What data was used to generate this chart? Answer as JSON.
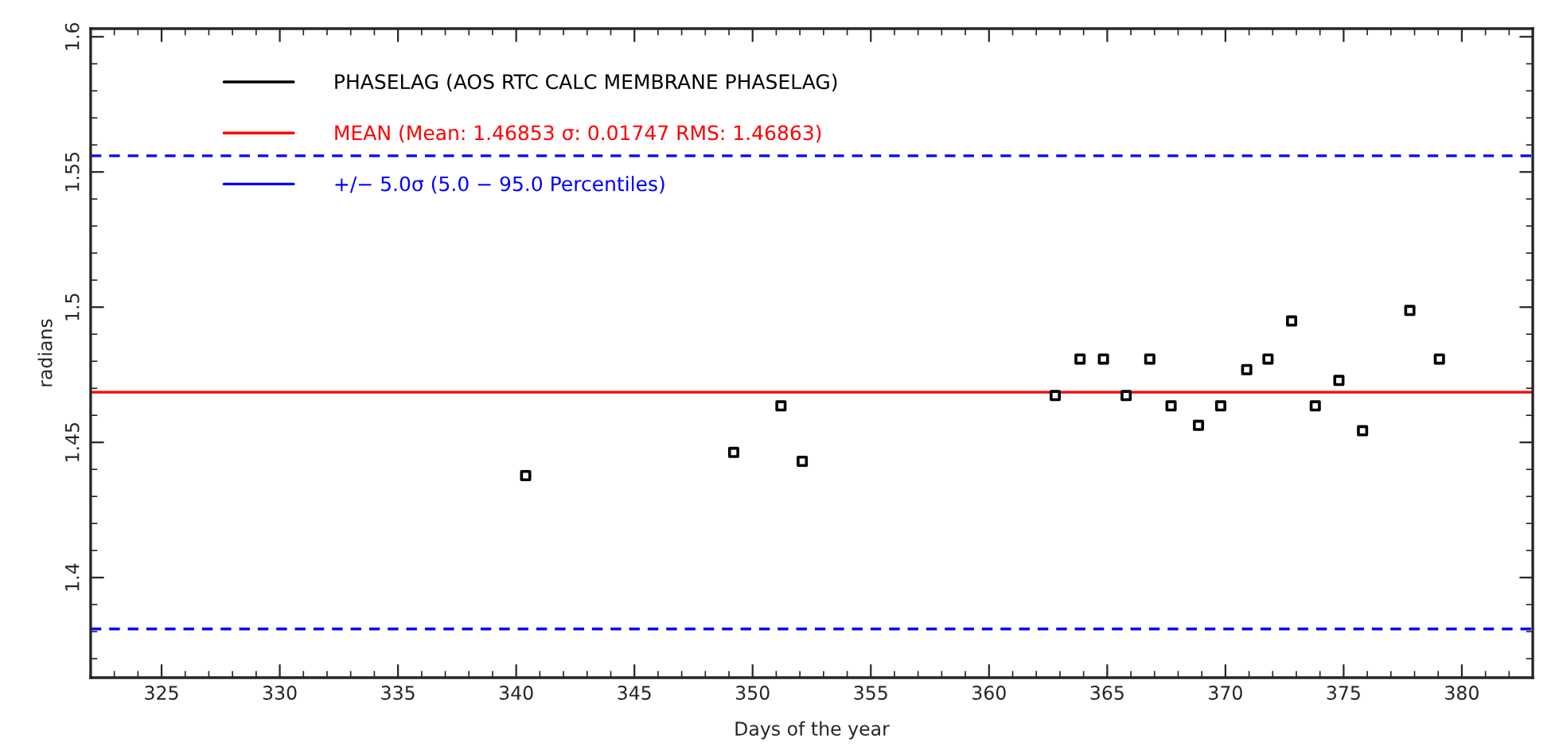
{
  "chart_data": {
    "type": "scatter",
    "xlabel": "Days of the year",
    "ylabel": "radians",
    "x": [
      340.4,
      349.2,
      351.2,
      352.1,
      362.8,
      363.85,
      364.84,
      365.8,
      366.8,
      367.7,
      368.86,
      369.8,
      370.9,
      371.8,
      372.8,
      373.8,
      374.8,
      375.8,
      377.8,
      379.05
    ],
    "series": [
      {
        "name": "PHASELAG (AOS RTC CALC MEMBRANE PHASELAG)",
        "color": "#000000",
        "values": [
          1.4377,
          1.4463,
          1.4635,
          1.443,
          1.4673,
          1.4808,
          1.4808,
          1.4673,
          1.4808,
          1.4635,
          1.4563,
          1.4635,
          1.4769,
          1.4808,
          1.4949,
          1.4635,
          1.4729,
          1.4543,
          1.4988,
          1.4808
        ]
      }
    ],
    "marker": "square",
    "ref_lines": [
      {
        "axis": "y",
        "value": 1.46853,
        "label": "MEAN (Mean: 1.46853 σ: 0.01747 RMS: 1.46863)",
        "color": "#ff0000",
        "line_style": "solid"
      },
      {
        "axis": "y",
        "value": 1.556,
        "label": "+/− 5.0σ (5.0 − 95.0 Percentiles)",
        "color": "#0000ff",
        "line_style": "dashed"
      },
      {
        "axis": "y",
        "value": 1.381,
        "color": "#0000ff",
        "line_style": "dashed"
      }
    ],
    "xlim": [
      322,
      383
    ],
    "xticks": [
      325,
      330,
      335,
      340,
      345,
      350,
      355,
      360,
      365,
      370,
      375,
      380
    ],
    "ylim": [
      1.363,
      1.603
    ],
    "yticks": [
      1.4,
      1.45,
      1.5,
      1.55,
      1.6
    ],
    "grid": false,
    "legend": "top left"
  }
}
